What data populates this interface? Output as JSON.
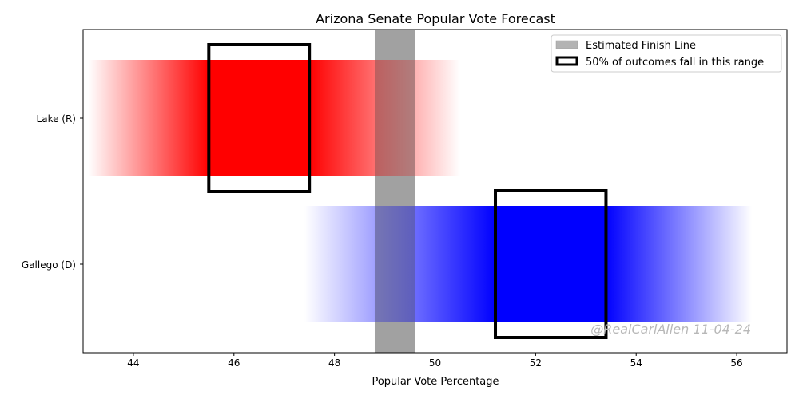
{
  "chart_data": {
    "type": "bar",
    "title": "Arizona Senate Popular Vote Forecast",
    "xlabel": "Popular Vote Percentage",
    "ylabel": "",
    "xlim": [
      43,
      57
    ],
    "x_ticks": [
      44,
      46,
      48,
      50,
      52,
      54,
      56
    ],
    "categories": [
      "Lake (R)",
      "Gallego (D)"
    ],
    "series": [
      {
        "name": "Lake (R)",
        "color": "#ff0000",
        "range_min": 43.1,
        "range_max": 50.5,
        "iqr_low": 45.5,
        "iqr_high": 47.5
      },
      {
        "name": "Gallego (D)",
        "color": "#0000ff",
        "range_min": 47.4,
        "range_max": 56.3,
        "iqr_low": 51.2,
        "iqr_high": 53.4
      }
    ],
    "finish_line": {
      "low": 48.8,
      "high": 49.6,
      "color": "#b3b3b3"
    },
    "legend": {
      "placement": "top-right",
      "entries": [
        "Estimated Finish Line",
        "50% of outcomes fall in this range"
      ]
    },
    "watermark": "@RealCarlAllen 11-04-24",
    "grid": false
  }
}
